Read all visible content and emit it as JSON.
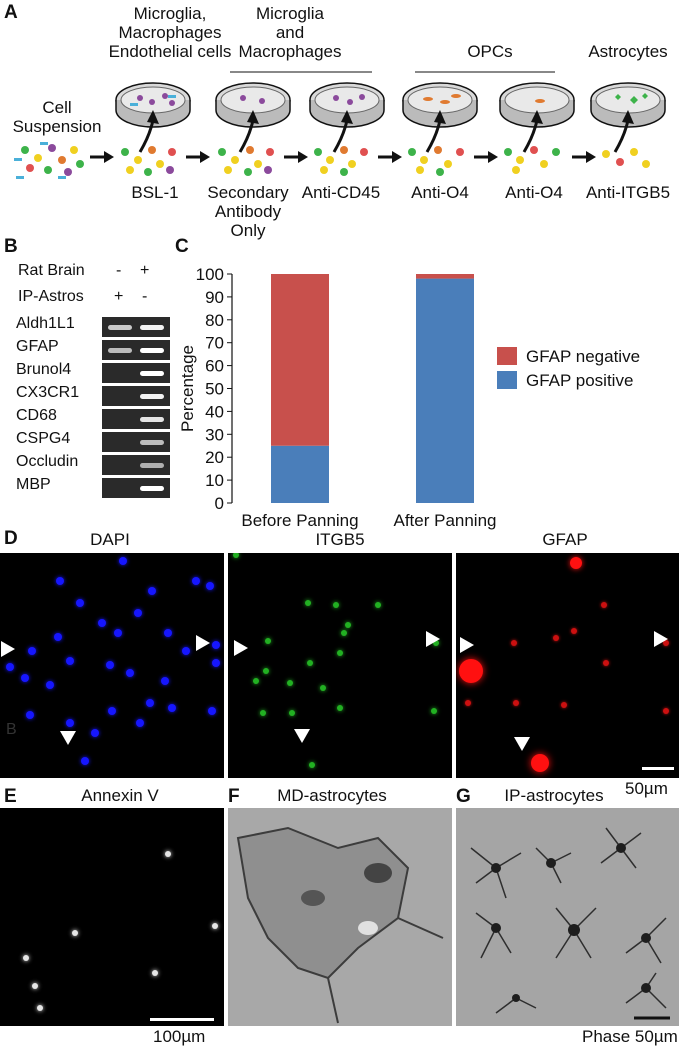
{
  "panel_A": {
    "label": "A",
    "cell_suspension": "Cell\nSuspension",
    "steps": [
      {
        "text": "BSL-1"
      },
      {
        "text": "Secondary\nAntibody\nOnly"
      },
      {
        "text": "Anti-CD45"
      },
      {
        "text": "Anti-O4"
      },
      {
        "text": "Anti-O4"
      },
      {
        "text": "Anti-ITGB5"
      }
    ],
    "dish_labels": [
      {
        "text": "Microglia,\nMacrophages\nEndothelial cells"
      },
      {
        "text": "Microglia\nand\nMacrophages"
      },
      {
        "text": "OPCs"
      },
      {
        "text": "Astrocytes"
      }
    ]
  },
  "panel_B": {
    "label": "B",
    "row_headers": [
      {
        "name": "Rat Brain",
        "lane1": "-",
        "lane2": "+"
      },
      {
        "name": "IP-Astros",
        "lane1": "+",
        "lane2": "-"
      }
    ],
    "genes": [
      {
        "name": "Aldh1L1",
        "lane1": 0.6,
        "lane2": 0.9
      },
      {
        "name": "GFAP",
        "lane1": 0.5,
        "lane2": 1.0
      },
      {
        "name": "Brunol4",
        "lane1": 0.0,
        "lane2": 1.0
      },
      {
        "name": "CX3CR1",
        "lane1": 0.0,
        "lane2": 0.9
      },
      {
        "name": "CD68",
        "lane1": 0.0,
        "lane2": 0.8
      },
      {
        "name": "CSPG4",
        "lane1": 0.0,
        "lane2": 0.5
      },
      {
        "name": "Occludin",
        "lane1": 0.0,
        "lane2": 0.4
      },
      {
        "name": "MBP",
        "lane1": 0.0,
        "lane2": 1.0
      }
    ]
  },
  "panel_C": {
    "label": "C"
  },
  "chart_data": {
    "type": "bar",
    "stacked": true,
    "categories": [
      "Before Panning",
      "After Panning"
    ],
    "series": [
      {
        "name": "GFAP positive",
        "color": "#4a7eba",
        "values": [
          25,
          98
        ]
      },
      {
        "name": "GFAP negative",
        "color": "#c8504c",
        "values": [
          75,
          2
        ]
      }
    ],
    "ylabel": "Percentage",
    "ylim": [
      0,
      100
    ],
    "yticks": [
      0,
      10,
      20,
      30,
      40,
      50,
      60,
      70,
      80,
      90,
      100
    ],
    "legend_position": "right",
    "grid": false
  },
  "panel_D": {
    "label": "D",
    "titles": [
      "DAPI",
      "ITGB5",
      "GFAP"
    ],
    "scale": "50µm",
    "watermark": "B"
  },
  "panel_E": {
    "label": "E",
    "title": "Annexin V",
    "scale": "100µm"
  },
  "panel_F": {
    "label": "F",
    "title": "MD-astrocytes"
  },
  "panel_G": {
    "label": "G",
    "title": "IP-astrocytes",
    "scale": "Phase 50µm"
  }
}
